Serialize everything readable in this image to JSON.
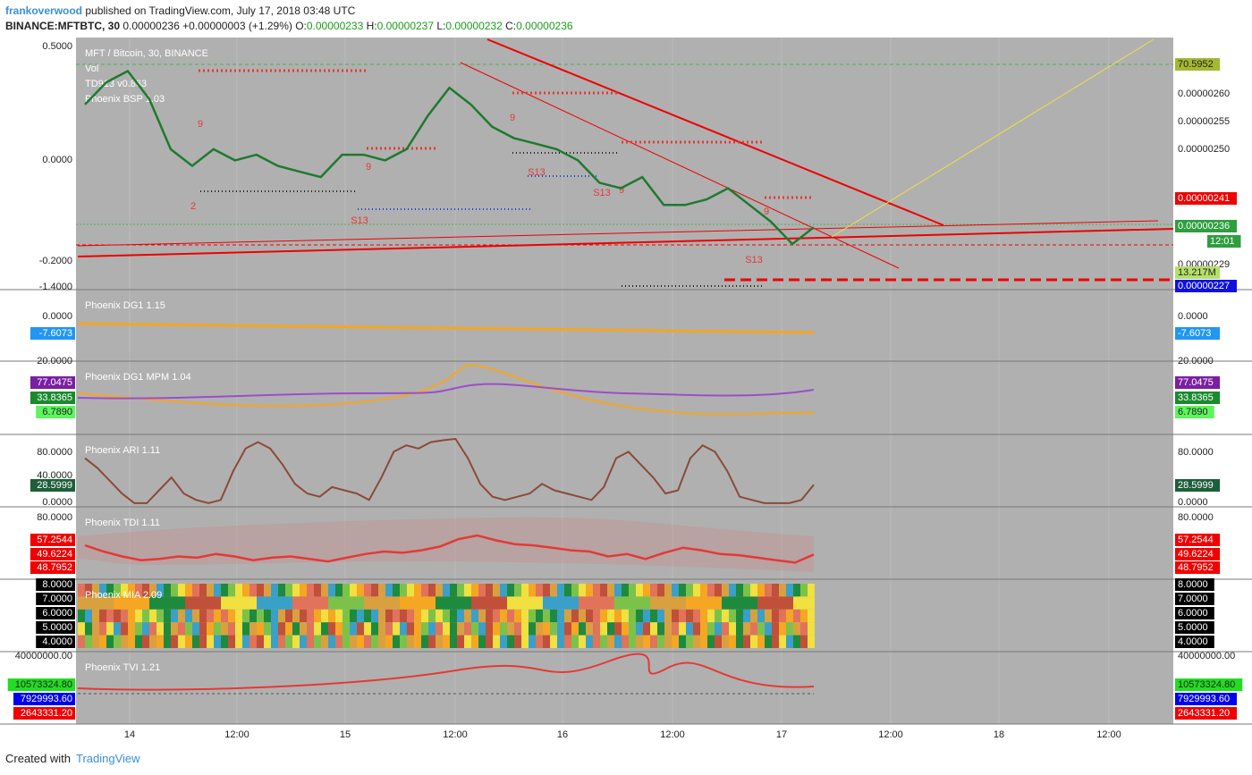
{
  "header": {
    "author": "frankoverwood",
    "published": "published on TradingView.com, July 17, 2018 03:48 UTC",
    "symbol": "BINANCE:MFTBTC, 30",
    "last": "0.00000236",
    "change": "+0.00000003 (+1.29%)",
    "ohlc": [
      {
        "label": "O:",
        "value": "0.00000233"
      },
      {
        "label": "H:",
        "value": "0.00000237"
      },
      {
        "label": "L:",
        "value": "0.00000232"
      },
      {
        "label": "C:",
        "value": "0.00000236"
      }
    ]
  },
  "panes": [
    {
      "title": "MFT / Bitcoin, 30, BINANCE",
      "legend": [
        "Vol",
        "TD913 v0.863",
        "Phoenix BSP 1.03"
      ],
      "left": [
        {
          "text": "0.5000"
        },
        {
          "text": "0.0000"
        },
        {
          "text": "-0.2000"
        },
        {
          "text": "-1.4000"
        }
      ],
      "right": [
        {
          "text": "70.5952",
          "bg": "#a4b832"
        },
        {
          "text": "0.00000260"
        },
        {
          "text": "0.00000255"
        },
        {
          "text": "0.00000250"
        },
        {
          "text": "0.00000241",
          "bg": "#f00000",
          "fg": "#ffffff"
        },
        {
          "text": "0.00000236",
          "bg": "#2e9e3e",
          "fg": "#ffffff"
        },
        {
          "text": "12:01",
          "bg": "#2e9e3e",
          "fg": "#ffffff"
        },
        {
          "text": "0.00000229"
        },
        {
          "text": "13.217M",
          "bg": "#b5e06a"
        },
        {
          "text": "0.00000227",
          "bg": "#1010e0",
          "fg": "#ffffff"
        }
      ]
    },
    {
      "title": "Phoenix DG1 1.15",
      "left": [
        {
          "text": "0.0000"
        },
        {
          "text": "-7.6073",
          "bg": "#2196f3",
          "fg": "#ffffff"
        }
      ],
      "right": [
        {
          "text": "0.0000"
        },
        {
          "text": "-7.6073",
          "bg": "#2196f3",
          "fg": "#ffffff"
        }
      ]
    },
    {
      "title": "Phoenix DG1 MPM 1.04",
      "left": [
        {
          "text": "20.0000"
        },
        {
          "text": "77.0475",
          "bg": "#7b1fa2",
          "fg": "#ffffff"
        },
        {
          "text": "33.8365",
          "bg": "#1b8a2e",
          "fg": "#ffffff"
        },
        {
          "text": "6.7890",
          "bg": "#5df55d"
        }
      ],
      "right": [
        {
          "text": "20.0000"
        },
        {
          "text": "77.0475",
          "bg": "#7b1fa2",
          "fg": "#ffffff"
        },
        {
          "text": "33.8365",
          "bg": "#1b8a2e",
          "fg": "#ffffff"
        },
        {
          "text": "6.7890",
          "bg": "#5df55d"
        }
      ]
    },
    {
      "title": "Phoenix ARI 1.11",
      "left": [
        {
          "text": "80.0000"
        },
        {
          "text": "40.0000"
        },
        {
          "text": "28.5999",
          "bg": "#1e5e3a",
          "fg": "#ffffff"
        },
        {
          "text": "0.0000"
        }
      ],
      "right": [
        {
          "text": "80.0000"
        },
        {
          "text": "28.5999",
          "bg": "#1e5e3a",
          "fg": "#ffffff"
        },
        {
          "text": "0.0000"
        }
      ]
    },
    {
      "title": "Phoenix TDI 1.11",
      "left": [
        {
          "text": "80.0000"
        },
        {
          "text": "57.2544",
          "bg": "#f00000",
          "fg": "#ffffff"
        },
        {
          "text": "49.6224",
          "bg": "#f00000",
          "fg": "#ffffff"
        },
        {
          "text": "48.7952",
          "bg": "#f00000",
          "fg": "#ffffff"
        }
      ],
      "right": [
        {
          "text": "80.0000"
        },
        {
          "text": "57.2544",
          "bg": "#f00000",
          "fg": "#ffffff"
        },
        {
          "text": "49.6224",
          "bg": "#f00000",
          "fg": "#ffffff"
        },
        {
          "text": "48.7952",
          "bg": "#f00000",
          "fg": "#ffffff"
        }
      ]
    },
    {
      "title": "Phoenix MIA 2.09",
      "left": [
        {
          "text": "8.0000",
          "bg": "#000000",
          "fg": "#ffffff"
        },
        {
          "text": "7.0000",
          "bg": "#000000",
          "fg": "#ffffff"
        },
        {
          "text": "6.0000",
          "bg": "#000000",
          "fg": "#ffffff"
        },
        {
          "text": "5.0000",
          "bg": "#000000",
          "fg": "#ffffff"
        },
        {
          "text": "4.0000",
          "bg": "#000000",
          "fg": "#ffffff"
        }
      ],
      "right": [
        {
          "text": "8.0000",
          "bg": "#000000",
          "fg": "#ffffff"
        },
        {
          "text": "7.0000",
          "bg": "#000000",
          "fg": "#ffffff"
        },
        {
          "text": "6.0000",
          "bg": "#000000",
          "fg": "#ffffff"
        },
        {
          "text": "5.0000",
          "bg": "#000000",
          "fg": "#ffffff"
        },
        {
          "text": "4.0000",
          "bg": "#000000",
          "fg": "#ffffff"
        }
      ]
    },
    {
      "title": "Phoenix TVI 1.21",
      "left": [
        {
          "text": "40000000.00"
        },
        {
          "text": "10573324.80",
          "bg": "#22dd22"
        },
        {
          "text": "7929993.60",
          "bg": "#0000ee",
          "fg": "#ffffff"
        },
        {
          "text": "2643331.20",
          "bg": "#f00000",
          "fg": "#ffffff"
        }
      ],
      "right": [
        {
          "text": "40000000.00"
        },
        {
          "text": "10573324.80",
          "bg": "#22dd22"
        },
        {
          "text": "7929993.60",
          "bg": "#0000ee",
          "fg": "#ffffff"
        },
        {
          "text": "2643331.20",
          "bg": "#f00000",
          "fg": "#ffffff"
        }
      ]
    }
  ],
  "annotations": [
    "2",
    "9",
    "9",
    "S13",
    "9",
    "S13",
    "S13",
    "9",
    "9",
    "S13"
  ],
  "price": {
    "ylim": [
      2.25e-06,
      2.7e-06
    ],
    "color": "#1e7a2e",
    "values": [
      2.58e-06,
      2.62e-06,
      2.64e-06,
      2.59e-06,
      2.5e-06,
      2.47e-06,
      2.5e-06,
      2.48e-06,
      2.49e-06,
      2.47e-06,
      2.46e-06,
      2.45e-06,
      2.49e-06,
      2.49e-06,
      2.48e-06,
      2.5e-06,
      2.56e-06,
      2.61e-06,
      2.58e-06,
      2.54e-06,
      2.52e-06,
      2.51e-06,
      2.5e-06,
      2.48e-06,
      2.44e-06,
      2.43e-06,
      2.45e-06,
      2.4e-06,
      2.4e-06,
      2.41e-06,
      2.43e-06,
      2.4e-06,
      2.37e-06,
      2.33e-06,
      2.36e-06
    ]
  },
  "ari": {
    "ylim": [
      -5.7,
      107
    ],
    "color": "#8b4a3a",
    "values": [
      70,
      55,
      35,
      15,
      0,
      0,
      20,
      40,
      15,
      5,
      0,
      5,
      50,
      85,
      95,
      85,
      60,
      30,
      15,
      10,
      25,
      20,
      15,
      5,
      40,
      80,
      90,
      85,
      95,
      98,
      100,
      70,
      30,
      10,
      5,
      10,
      15,
      30,
      20,
      15,
      10,
      5,
      25,
      70,
      80,
      60,
      40,
      15,
      20,
      70,
      90,
      80,
      50,
      10,
      5,
      0,
      0,
      0,
      5,
      28.5999
    ]
  },
  "tdi": {
    "ylim": [
      29.6,
      88.1
    ],
    "color": "#e53935",
    "values": [
      57,
      52,
      48,
      45,
      46,
      48,
      47,
      50,
      48,
      45,
      47,
      48,
      46,
      44,
      47,
      50,
      52,
      51,
      53,
      56,
      62,
      65,
      61,
      58,
      57,
      55,
      53,
      52,
      48,
      50,
      46,
      51,
      55,
      53,
      50,
      49,
      47,
      45,
      43,
      49.6224
    ]
  },
  "x_labels": [
    "14",
    "12:00",
    "15",
    "12:00",
    "16",
    "12:00",
    "17",
    "12:00",
    "18",
    "12:00"
  ],
  "footer": {
    "created": "Created with",
    "brand": "TradingView"
  }
}
